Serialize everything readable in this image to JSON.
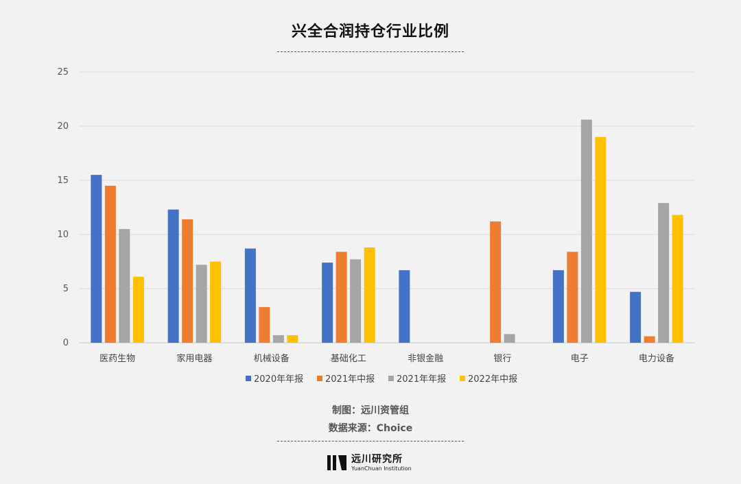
{
  "chart_data": {
    "type": "bar",
    "title": "兴全合润持仓行业比例",
    "categories": [
      "医药生物",
      "家用电器",
      "机械设备",
      "基础化工",
      "非银金融",
      "银行",
      "电子",
      "电力设备"
    ],
    "series": [
      {
        "name": "2020年年报",
        "color": "#4472c4",
        "values": [
          15.5,
          12.3,
          8.7,
          7.4,
          6.7,
          null,
          6.7,
          4.7
        ]
      },
      {
        "name": "2021年中报",
        "color": "#ed7d31",
        "values": [
          14.5,
          11.4,
          3.3,
          8.4,
          null,
          11.2,
          8.4,
          0.6
        ]
      },
      {
        "name": "2021年年报",
        "color": "#a5a5a5",
        "values": [
          10.5,
          7.2,
          0.7,
          7.7,
          null,
          0.8,
          20.6,
          12.9
        ]
      },
      {
        "name": "2022年中报",
        "color": "#ffc000",
        "values": [
          6.1,
          7.5,
          0.7,
          8.8,
          null,
          null,
          19.0,
          11.8
        ]
      }
    ],
    "yticks": [
      0,
      5,
      10,
      15,
      20,
      25
    ],
    "ylim": [
      0,
      25
    ],
    "grid": true,
    "legend_position": "bottom"
  },
  "footer": {
    "credit_author": "制图：远川资管组",
    "credit_source": "数据来源：Choice"
  },
  "logo": {
    "name_cn": "远川研究所",
    "name_en": "YuanChuan Institution"
  }
}
